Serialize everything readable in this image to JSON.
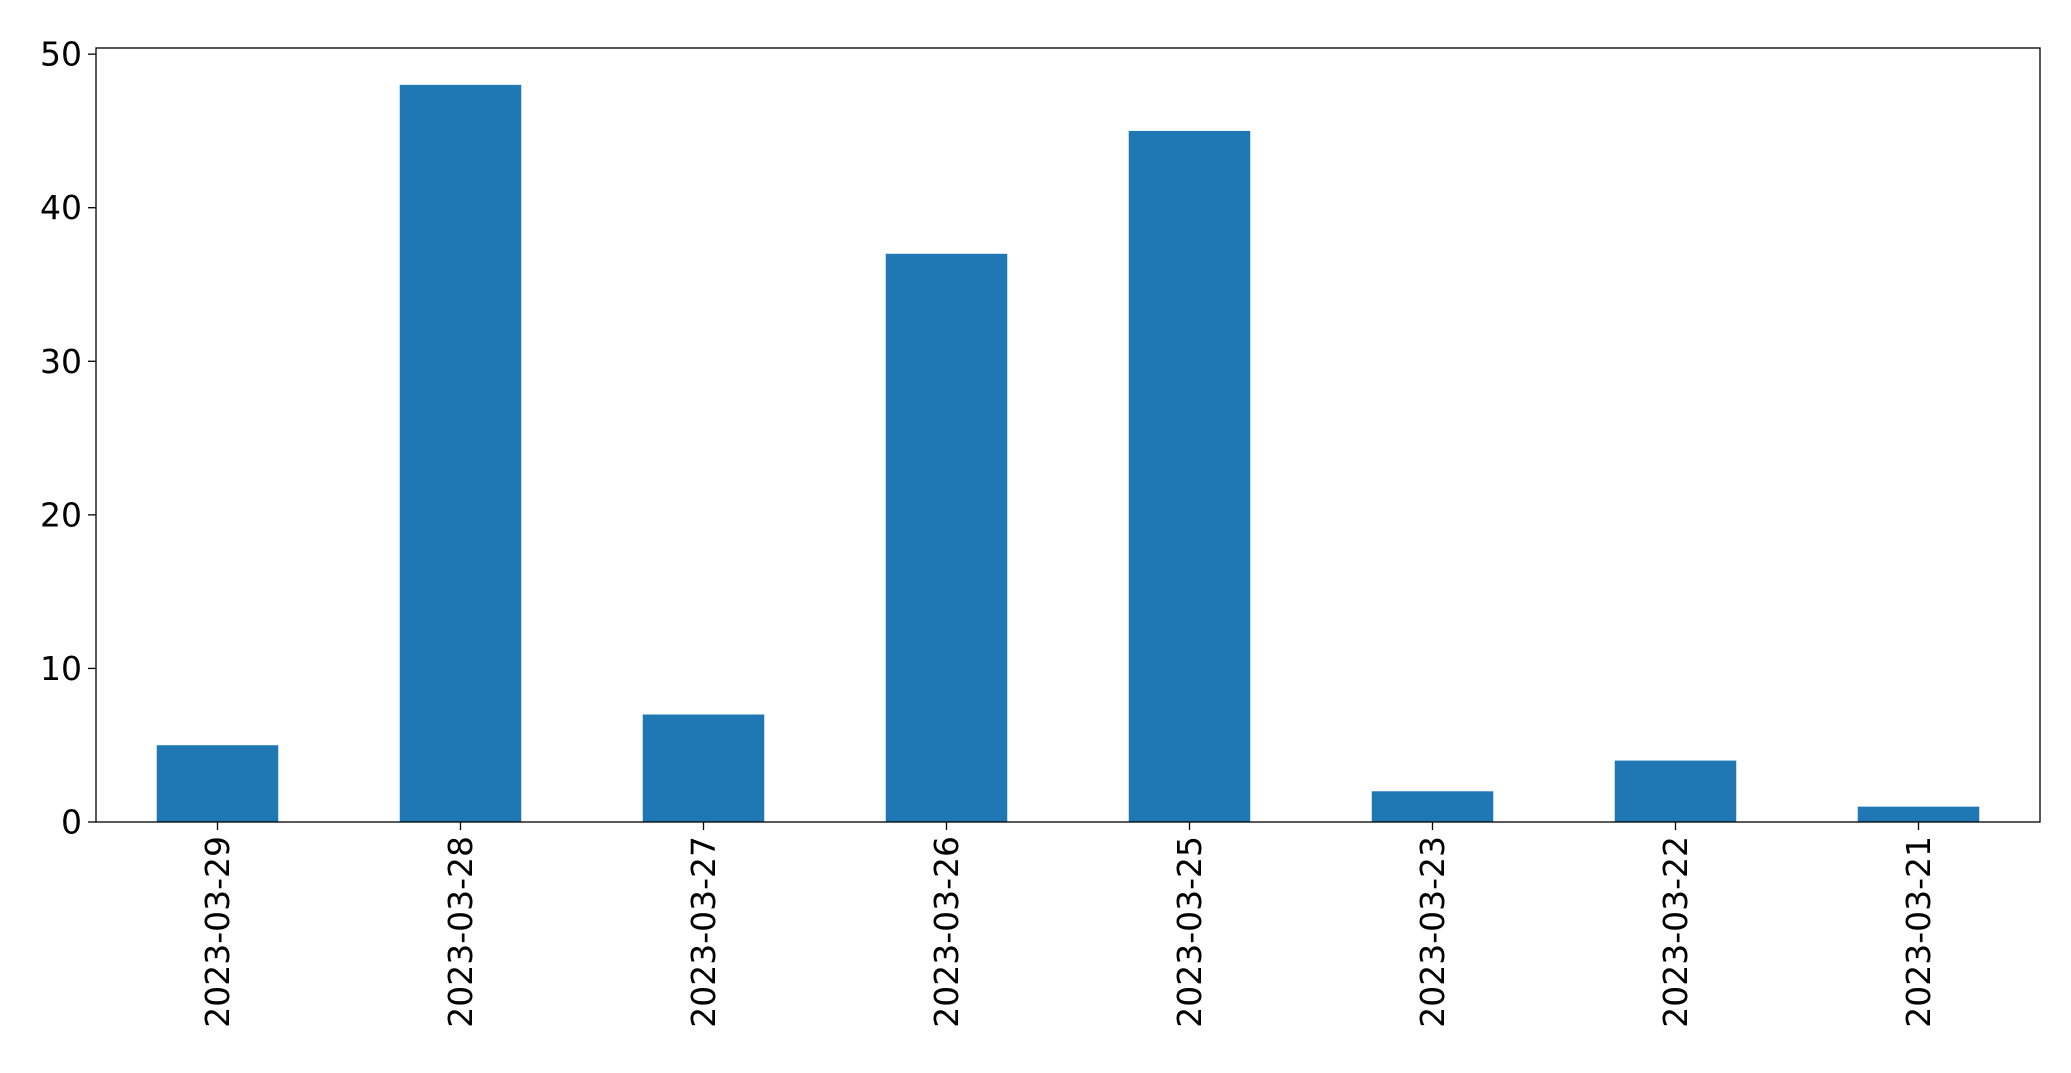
{
  "chart_data": {
    "type": "bar",
    "title": "",
    "xlabel": "",
    "ylabel": "",
    "categories": [
      "2023-03-29",
      "2023-03-28",
      "2023-03-27",
      "2023-03-26",
      "2023-03-25",
      "2023-03-23",
      "2023-03-22",
      "2023-03-21"
    ],
    "values": [
      5,
      48,
      7,
      37,
      45,
      2,
      4,
      1
    ],
    "ylim": [
      0,
      50.4
    ],
    "yticks": [
      0,
      10,
      20,
      30,
      40,
      50
    ],
    "grid": false,
    "legend": "none",
    "bar_color": "#1f77b4"
  }
}
